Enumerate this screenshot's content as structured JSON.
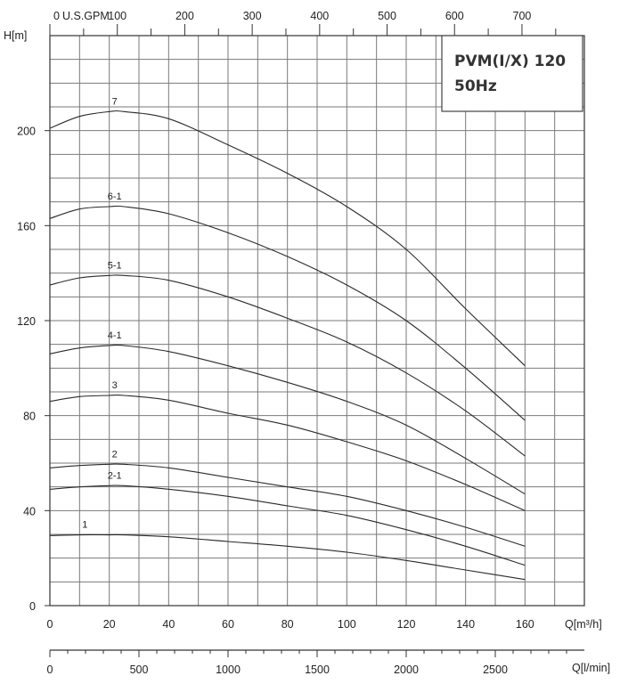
{
  "title_box": {
    "line1": "PVM(I/X) 120",
    "line2": "50Hz"
  },
  "chart_data": {
    "type": "line",
    "title": "PVM(I/X) 120 50Hz",
    "ylabel": "H[m]",
    "xlabel": "Q[m³/h]",
    "top_axis_label": "U.S.GPM",
    "bottom_axis_label": "Q[l/min]",
    "xlim": [
      0,
      180
    ],
    "ylim": [
      0,
      240
    ],
    "grid": true,
    "x_ticks": [
      0,
      20,
      40,
      60,
      80,
      100,
      120,
      140,
      160
    ],
    "y_ticks": [
      0,
      40,
      80,
      120,
      160,
      200
    ],
    "gpm_ticks": [
      0,
      100,
      200,
      300,
      400,
      500,
      600,
      700
    ],
    "lmin_ticks": [
      0,
      500,
      1000,
      1500,
      2000,
      2500
    ],
    "series": [
      {
        "name": "7",
        "x": [
          0,
          10,
          20,
          25,
          40,
          60,
          80,
          100,
          120,
          140,
          160
        ],
        "y": [
          201,
          206,
          208,
          208,
          205,
          194,
          182,
          168,
          150,
          125,
          101
        ]
      },
      {
        "name": "6-1",
        "x": [
          0,
          10,
          20,
          25,
          40,
          60,
          80,
          100,
          120,
          140,
          160
        ],
        "y": [
          163,
          167,
          168,
          168,
          165,
          157,
          147,
          135,
          120,
          100,
          78
        ]
      },
      {
        "name": "5-1",
        "x": [
          0,
          10,
          20,
          25,
          40,
          60,
          80,
          100,
          120,
          140,
          160
        ],
        "y": [
          135,
          138,
          139,
          139,
          137,
          130,
          121,
          111,
          98,
          82,
          63
        ]
      },
      {
        "name": "4-1",
        "x": [
          0,
          10,
          20,
          25,
          40,
          60,
          80,
          100,
          120,
          140,
          160
        ],
        "y": [
          106,
          108.5,
          109.5,
          109.5,
          107,
          101,
          94,
          86,
          76,
          62,
          47
        ]
      },
      {
        "name": "3",
        "x": [
          0,
          10,
          20,
          25,
          40,
          60,
          80,
          100,
          120,
          140,
          160
        ],
        "y": [
          86,
          88,
          88.5,
          88.5,
          86.5,
          81,
          76,
          69,
          61,
          51,
          40
        ]
      },
      {
        "name": "2",
        "x": [
          0,
          10,
          20,
          25,
          40,
          60,
          80,
          100,
          120,
          140,
          160
        ],
        "y": [
          58,
          59,
          59.5,
          59.5,
          58,
          54,
          50,
          46,
          40,
          33,
          25
        ]
      },
      {
        "name": "2-1",
        "x": [
          0,
          10,
          20,
          25,
          40,
          60,
          80,
          100,
          120,
          140,
          160
        ],
        "y": [
          49,
          50,
          50.5,
          50.5,
          49,
          46,
          42,
          38,
          32,
          25,
          17
        ]
      },
      {
        "name": "1",
        "x": [
          0,
          10,
          20,
          25,
          40,
          60,
          80,
          100,
          120,
          140,
          160
        ],
        "y": [
          29.5,
          29.8,
          29.8,
          29.8,
          29,
          27,
          25,
          22.5,
          19,
          15,
          11
        ]
      }
    ]
  }
}
